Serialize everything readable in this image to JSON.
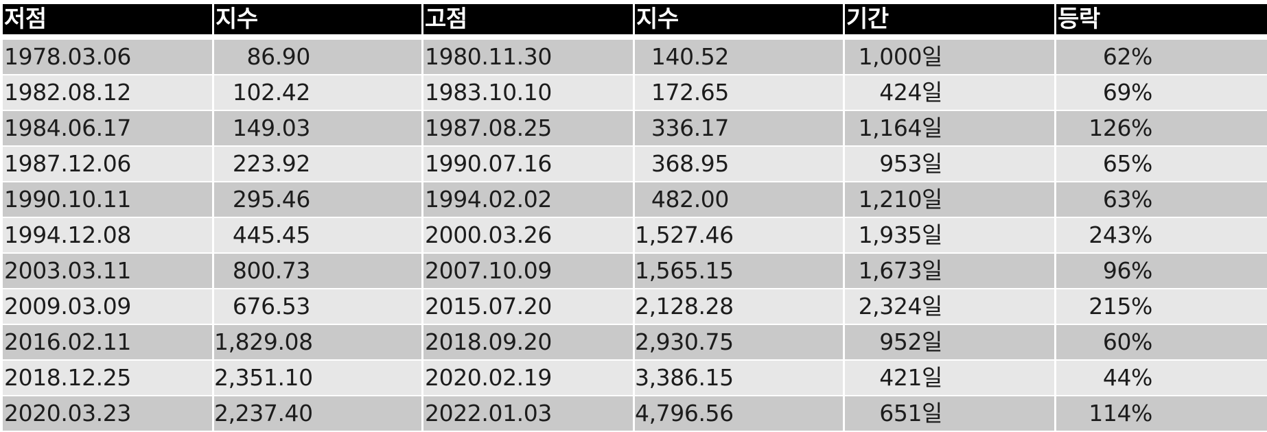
{
  "table": {
    "headers": [
      "저점",
      "지수",
      "고점",
      "지수",
      "기간",
      "등락"
    ],
    "rows": [
      [
        "1978.03.06",
        "86.90",
        "1980.11.30",
        "140.52",
        "1,000일",
        "62%"
      ],
      [
        "1982.08.12",
        "102.42",
        "1983.10.10",
        "172.65",
        "424일",
        "69%"
      ],
      [
        "1984.06.17",
        "149.03",
        "1987.08.25",
        "336.17",
        "1,164일",
        "126%"
      ],
      [
        "1987.12.06",
        "223.92",
        "1990.07.16",
        "368.95",
        "953일",
        "65%"
      ],
      [
        "1990.10.11",
        "295.46",
        "1994.02.02",
        "482.00",
        "1,210일",
        "63%"
      ],
      [
        "1994.12.08",
        "445.45",
        "2000.03.26",
        "1,527.46",
        "1,935일",
        "243%"
      ],
      [
        "2003.03.11",
        "800.73",
        "2007.10.09",
        "1,565.15",
        "1,673일",
        "96%"
      ],
      [
        "2009.03.09",
        "676.53",
        "2015.07.20",
        "2,128.28",
        "2,324일",
        "215%"
      ],
      [
        "2016.02.11",
        "1,829.08",
        "2018.09.20",
        "2,930.75",
        "952일",
        "60%"
      ],
      [
        "2018.12.25",
        "2,351.10",
        "2020.02.19",
        "3,386.15",
        "421일",
        "44%"
      ],
      [
        "2020.03.23",
        "2,237.40",
        "2022.01.03",
        "4,796.56",
        "651일",
        "114%"
      ]
    ]
  }
}
